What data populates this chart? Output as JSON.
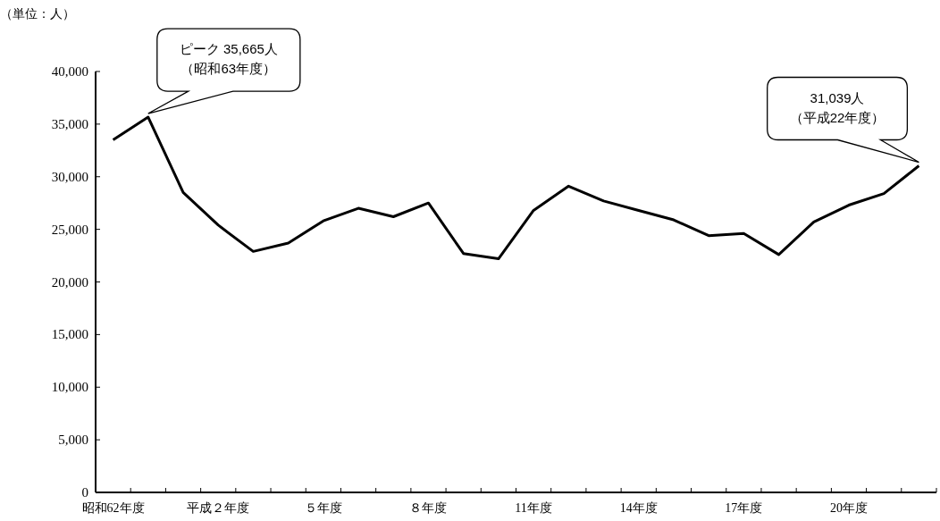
{
  "chart_data": {
    "type": "line",
    "ylabel": "（単位：人）",
    "categories": [
      "昭和62年度",
      null,
      null,
      "平成２年度",
      null,
      null,
      "５年度",
      null,
      null,
      "８年度",
      null,
      null,
      "11年度",
      null,
      null,
      "14年度",
      null,
      null,
      "17年度",
      null,
      null,
      "20年度",
      null,
      null
    ],
    "series": [
      {
        "color": "#000000",
        "values": [
          33500,
          35665,
          28500,
          25400,
          22900,
          23700,
          25800,
          27000,
          26200,
          27500,
          22700,
          22200,
          26800,
          29100,
          27700,
          26800,
          25900,
          24400,
          24600,
          22600,
          25700,
          27300,
          28400,
          31039
        ]
      }
    ],
    "ylim": [
      0,
      40000
    ],
    "yticks": [
      0,
      {
        "value": 5000,
        "label": "5,000"
      },
      {
        "value": 10000,
        "label": "10,000"
      },
      {
        "value": 15000,
        "label": "15,000"
      },
      {
        "value": 20000,
        "label": "20,000"
      },
      {
        "value": 25000,
        "label": "25,000"
      },
      {
        "value": 30000,
        "label": "30,000"
      },
      {
        "value": 35000,
        "label": "35,000"
      },
      {
        "value": 40000,
        "label": "40,000"
      }
    ],
    "grid": false,
    "marker": "none",
    "line_style": "solid",
    "annotations": [
      "ピーク 35,665人",
      "（昭和63年度）",
      "31,039人",
      "（平成22年度）"
    ]
  }
}
